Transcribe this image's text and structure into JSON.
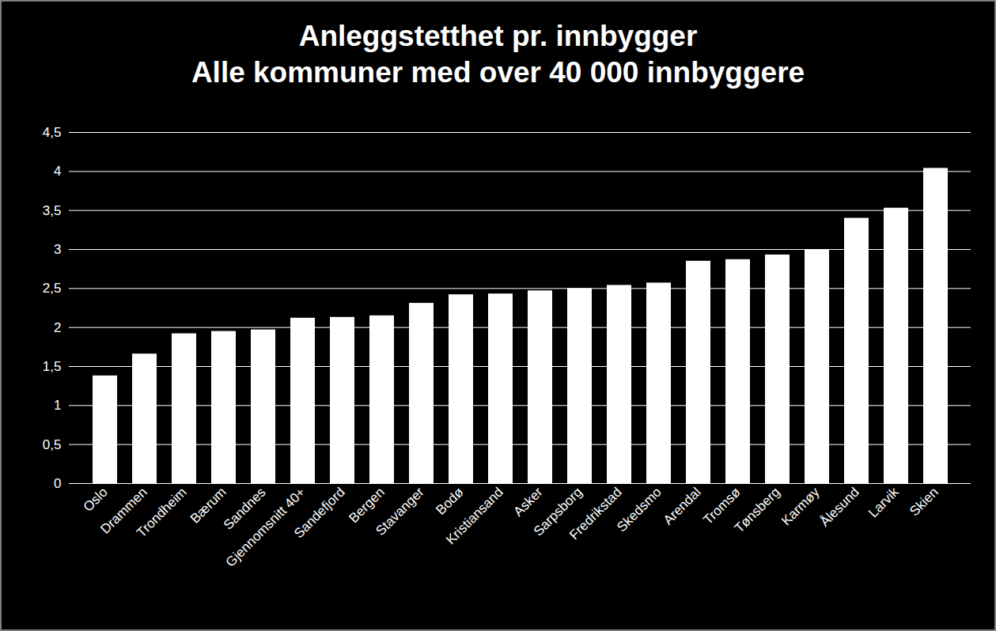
{
  "chart_data": {
    "type": "bar",
    "title": "Anleggstetthet pr. innbygger",
    "subtitle": "Alle kommuner med over 40 000 innbyggere",
    "categories": [
      "Oslo",
      "Drammen",
      "Trondheim",
      "Bærum",
      "Sandnes",
      "Gjennomsnitt 40+",
      "Sandefjord",
      "Bergen",
      "Stavanger",
      "Bodø",
      "Kristiansand",
      "Asker",
      "Sarpsborg",
      "Fredrikstad",
      "Skedsmo",
      "Arendal",
      "Tromsø",
      "Tønsberg",
      "Karmøy",
      "Ålesund",
      "Larvik",
      "Skien"
    ],
    "values": [
      1.38,
      1.66,
      1.92,
      1.95,
      1.97,
      2.12,
      2.13,
      2.15,
      2.31,
      2.42,
      2.43,
      2.47,
      2.5,
      2.54,
      2.57,
      2.85,
      2.87,
      2.93,
      2.99,
      3.4,
      3.53,
      4.04
    ],
    "color": "#ffffff",
    "ylim": [
      0,
      4.5
    ],
    "yticks": [
      0,
      {
        "value": 0.5,
        "label": "0,5"
      },
      1,
      {
        "value": 1.5,
        "label": "1,5"
      },
      2,
      {
        "value": 2.5,
        "label": "2,5"
      },
      3,
      {
        "value": 3.5,
        "label": "3,5"
      },
      4,
      {
        "value": 4.5,
        "label": "4,5"
      }
    ],
    "grid": true
  }
}
